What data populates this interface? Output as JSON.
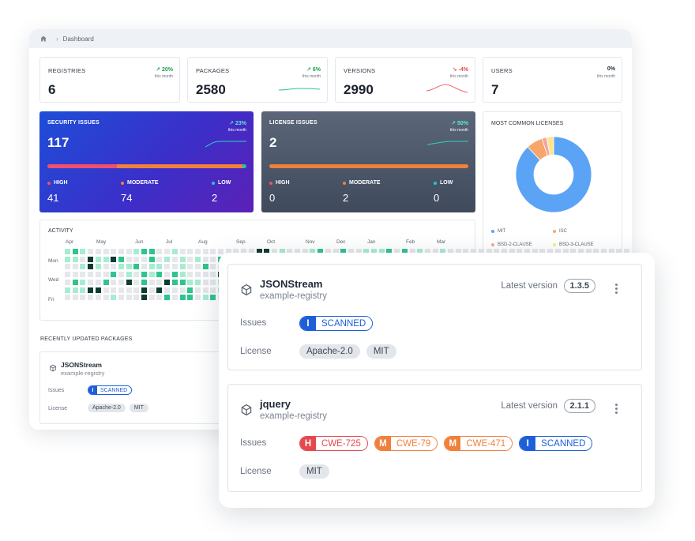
{
  "breadcrumb": {
    "label": "Dashboard"
  },
  "stats": [
    {
      "label": "REGISTRIES",
      "value": "6",
      "change": "↗ 20%",
      "sub": "this month",
      "trend": "up"
    },
    {
      "label": "PACKAGES",
      "value": "2580",
      "change": "↗ 6%",
      "sub": "this month",
      "trend": "up"
    },
    {
      "label": "VERSIONS",
      "value": "2990",
      "change": "↘ -4%",
      "sub": "this month",
      "trend": "down"
    },
    {
      "label": "USERS",
      "value": "7",
      "change": "0%",
      "sub": "this month",
      "trend": "flat"
    }
  ],
  "security": {
    "label": "SECURITY ISSUES",
    "value": "117",
    "change": "↗ 23%",
    "sub": "this month",
    "high_label": "HIGH",
    "high": "41",
    "moderate_label": "MODERATE",
    "moderate": "74",
    "low_label": "LOW",
    "low": "2",
    "bar_fractions": {
      "high": 0.35,
      "moderate": 0.63,
      "low": 0.02
    }
  },
  "license": {
    "label": "LICENSE ISSUES",
    "value": "2",
    "change": "↗ 50%",
    "sub": "this month",
    "high_label": "HIGH",
    "high": "0",
    "moderate_label": "MODERATE",
    "moderate": "2",
    "low_label": "LOW",
    "low": "0"
  },
  "licenses_card": {
    "title": "MOST COMMON LICENSES",
    "legend": [
      "MIT",
      "ISC",
      "BSD-2-CLAUSE",
      "BSD-3-CLAUSE"
    ],
    "colors": [
      "#5ba3f5",
      "#f7a66b",
      "#f5a3a3",
      "#fde68a"
    ],
    "shares": [
      0.88,
      0.07,
      0.02,
      0.03
    ]
  },
  "activity": {
    "title": "ACTIVITY",
    "months": [
      "Apr",
      "May",
      "Jun",
      "Jul",
      "Aug",
      "Sep",
      "Oct",
      "Nov",
      "Dec",
      "Jan",
      "Feb",
      "Mar"
    ],
    "days": [
      "Mon",
      "Wed",
      "Fri"
    ]
  },
  "recent": {
    "title": "RECENTLY UPDATED PACKAGES",
    "mini": {
      "name": "JSONStream",
      "registry": "example-registry",
      "issues_label": "Issues",
      "license_label": "License",
      "scanned_key": "I",
      "scanned": "SCANNED",
      "licenses": [
        "Apache-2.0",
        "MIT"
      ]
    }
  },
  "packages": [
    {
      "name": "JSONStream",
      "registry": "example-registry",
      "latest_label": "Latest version",
      "version": "1.3.5",
      "issues_label": "Issues",
      "license_label": "License",
      "issues": [
        {
          "key": "I",
          "text": "SCANNED",
          "color": "#1d5fd9"
        }
      ],
      "licenses": [
        "Apache-2.0",
        "MIT"
      ]
    },
    {
      "name": "jquery",
      "registry": "example-registry",
      "latest_label": "Latest version",
      "version": "2.1.1",
      "issues_label": "Issues",
      "license_label": "License",
      "issues": [
        {
          "key": "H",
          "text": "CWE-725",
          "color": "#e5484d"
        },
        {
          "key": "M",
          "text": "CWE-79",
          "color": "#f0803c"
        },
        {
          "key": "M",
          "text": "CWE-471",
          "color": "#f0803c"
        },
        {
          "key": "I",
          "text": "SCANNED",
          "color": "#1d5fd9"
        }
      ],
      "licenses": [
        "MIT"
      ]
    }
  ]
}
